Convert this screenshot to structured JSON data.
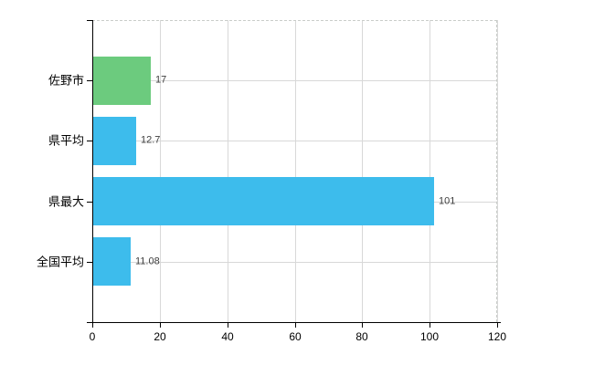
{
  "chart_data": {
    "type": "bar",
    "orientation": "horizontal",
    "title": "",
    "xlabel": "",
    "ylabel": "",
    "categories": [
      "佐野市",
      "県平均",
      "県最大",
      "全国平均"
    ],
    "values": [
      17,
      12.7,
      101,
      11.08
    ],
    "value_labels": [
      "17",
      "12.7",
      "101",
      "11.08"
    ],
    "bar_colors": [
      "#6ccb7e",
      "#3dbcec",
      "#3dbcec",
      "#3dbcec"
    ],
    "xlim": [
      0,
      120
    ],
    "x_ticks": [
      "0",
      "20",
      "40",
      "60",
      "80",
      "100",
      "120"
    ],
    "grid": true,
    "legend": false,
    "colors": {
      "green_bar": "#6ccb7e",
      "blue_bar": "#3dbcec",
      "gridline": "#d8d8d8",
      "axis": "#000000",
      "value_label_text": "#3d3d3d",
      "tick_label_text": "#000000",
      "background": "#ffffff"
    }
  }
}
